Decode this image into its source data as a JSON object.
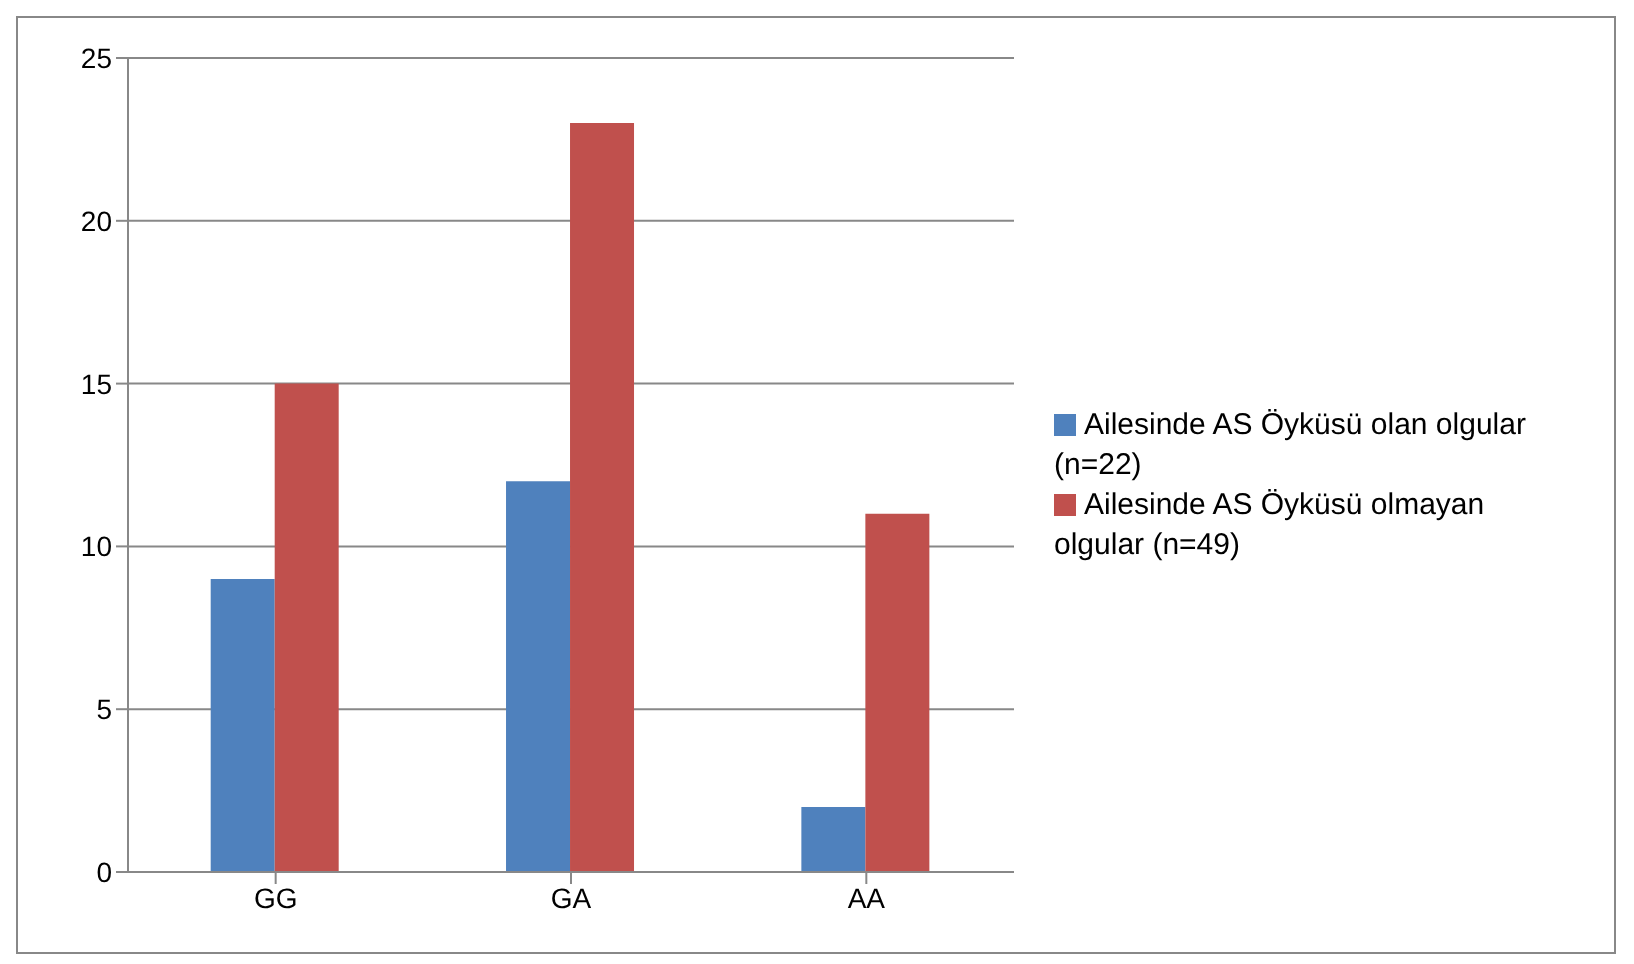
{
  "chart_data": {
    "type": "bar",
    "categories": [
      "GG",
      "GA",
      "AA"
    ],
    "series": [
      {
        "name": "Ailesinde AS Öyküsü olan olgular (n=22)",
        "color": "#4f81bd",
        "values": [
          9,
          12,
          2
        ]
      },
      {
        "name": "Ailesinde AS Öyküsü olmayan olgular (n=49)",
        "color": "#c0504d",
        "values": [
          15,
          23,
          11
        ]
      }
    ],
    "ylim": [
      0,
      25
    ],
    "yticks": [
      0,
      5,
      10,
      15,
      20,
      25
    ],
    "grid": "y",
    "legend": "right"
  }
}
